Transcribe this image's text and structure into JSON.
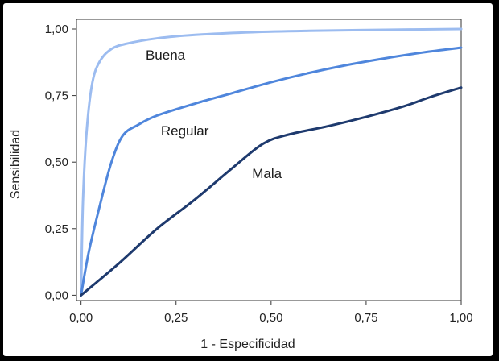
{
  "chart_data": {
    "type": "line",
    "xlabel": "1 - Especificidad",
    "ylabel": "Sensibilidad",
    "xlim": [
      0,
      1
    ],
    "ylim": [
      0,
      1
    ],
    "x_ticks": [
      "0,00",
      "0,25",
      "0,50",
      "0,75",
      "1,00"
    ],
    "y_ticks": [
      "0,00",
      "0,25",
      "0,50",
      "0,75",
      "1,00"
    ],
    "grid": false,
    "legend": "none",
    "series": [
      {
        "name": "Buena",
        "color": "#9cbcf0",
        "points": [
          [
            0,
            0
          ],
          [
            0.005,
            0.35
          ],
          [
            0.015,
            0.62
          ],
          [
            0.03,
            0.8
          ],
          [
            0.05,
            0.88
          ],
          [
            0.08,
            0.925
          ],
          [
            0.12,
            0.945
          ],
          [
            0.2,
            0.965
          ],
          [
            0.3,
            0.978
          ],
          [
            0.45,
            0.988
          ],
          [
            0.6,
            0.993
          ],
          [
            0.8,
            0.997
          ],
          [
            1.0,
            1.0
          ]
        ]
      },
      {
        "name": "Regular",
        "color": "#4f86dc",
        "points": [
          [
            0,
            0
          ],
          [
            0.02,
            0.16
          ],
          [
            0.05,
            0.34
          ],
          [
            0.08,
            0.5
          ],
          [
            0.11,
            0.6
          ],
          [
            0.15,
            0.64
          ],
          [
            0.2,
            0.675
          ],
          [
            0.3,
            0.72
          ],
          [
            0.4,
            0.76
          ],
          [
            0.5,
            0.8
          ],
          [
            0.6,
            0.835
          ],
          [
            0.7,
            0.865
          ],
          [
            0.8,
            0.89
          ],
          [
            0.9,
            0.912
          ],
          [
            1.0,
            0.93
          ]
        ]
      },
      {
        "name": "Mala",
        "color": "#1e3a6e",
        "points": [
          [
            0,
            0
          ],
          [
            0.1,
            0.12
          ],
          [
            0.2,
            0.25
          ],
          [
            0.3,
            0.36
          ],
          [
            0.4,
            0.48
          ],
          [
            0.48,
            0.57
          ],
          [
            0.55,
            0.605
          ],
          [
            0.65,
            0.635
          ],
          [
            0.75,
            0.67
          ],
          [
            0.85,
            0.71
          ],
          [
            0.92,
            0.745
          ],
          [
            1.0,
            0.78
          ]
        ]
      }
    ],
    "annotations": [
      {
        "text": "Buena",
        "x": 0.17,
        "y": 0.885
      },
      {
        "text": "Regular",
        "x": 0.21,
        "y": 0.6
      },
      {
        "text": "Mala",
        "x": 0.45,
        "y": 0.44
      }
    ],
    "axis_color": "#333333"
  }
}
